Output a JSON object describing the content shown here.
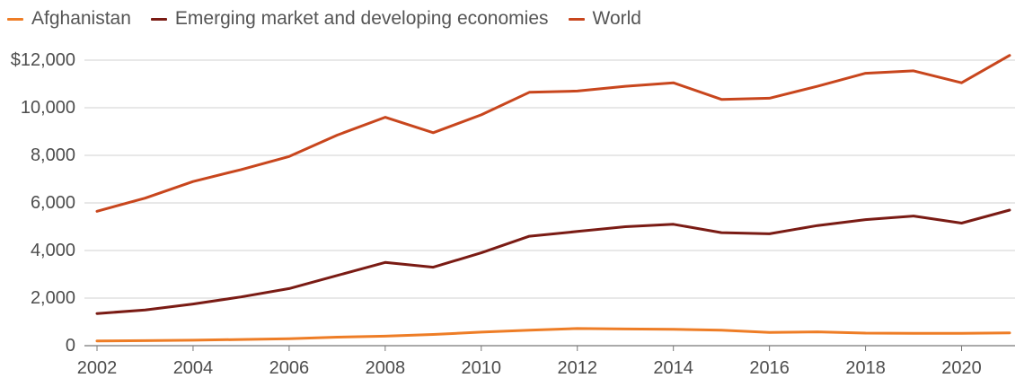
{
  "chart_data": {
    "type": "line",
    "legend_position": "top-left",
    "grid": true,
    "xlim": [
      2002,
      2021
    ],
    "ylim": [
      0,
      12000
    ],
    "x": [
      2002,
      2003,
      2004,
      2005,
      2006,
      2007,
      2008,
      2009,
      2010,
      2011,
      2012,
      2013,
      2014,
      2015,
      2016,
      2017,
      2018,
      2019,
      2020,
      2021
    ],
    "x_ticks": [
      2002,
      2004,
      2006,
      2008,
      2010,
      2012,
      2014,
      2016,
      2018,
      2020
    ],
    "y_ticks": [
      {
        "value": 12000,
        "label": "$12,000"
      },
      {
        "value": 10000,
        "label": "10,000"
      },
      {
        "value": 8000,
        "label": "8,000"
      },
      {
        "value": 6000,
        "label": "6,000"
      },
      {
        "value": 4000,
        "label": "4,000"
      },
      {
        "value": 2000,
        "label": "2,000"
      },
      {
        "value": 0,
        "label": "0"
      }
    ],
    "series": [
      {
        "name": "Afghanistan",
        "color": "#ee7d26",
        "values": [
          200,
          210,
          230,
          260,
          290,
          360,
          400,
          470,
          570,
          650,
          720,
          700,
          690,
          650,
          560,
          580,
          530,
          520,
          520,
          540
        ]
      },
      {
        "name": "Emerging market and developing economies",
        "color": "#7a1b14",
        "values": [
          1350,
          1500,
          1750,
          2050,
          2400,
          2950,
          3500,
          3300,
          3900,
          4600,
          4800,
          5000,
          5100,
          4750,
          4700,
          5050,
          5300,
          5450,
          5150,
          5700
        ]
      },
      {
        "name": "World",
        "color": "#c8461d",
        "values": [
          5650,
          6200,
          6900,
          7400,
          7950,
          8850,
          9600,
          8950,
          9700,
          10650,
          10700,
          10900,
          11050,
          10350,
          10400,
          10900,
          11450,
          11550,
          11050,
          12200
        ]
      }
    ]
  }
}
